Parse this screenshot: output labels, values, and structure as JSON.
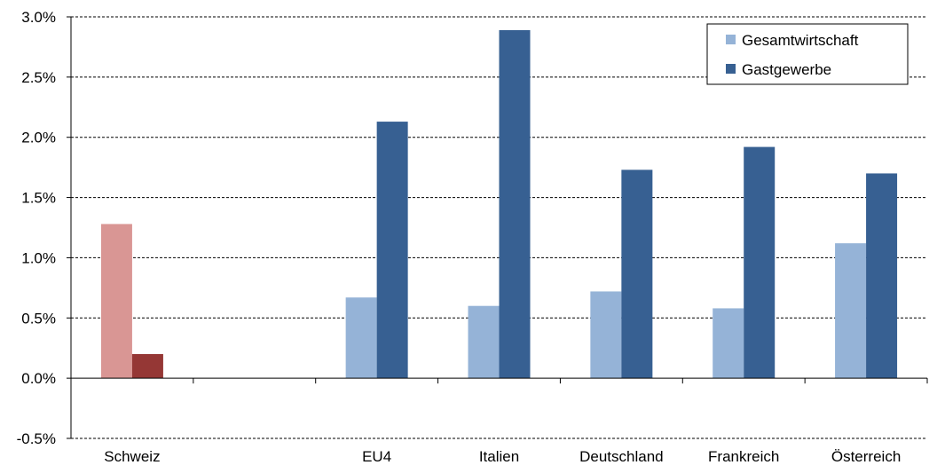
{
  "chart_data": {
    "type": "bar",
    "categories": [
      "Schweiz",
      "",
      "EU4",
      "Italien",
      "Deutschland",
      "Frankreich",
      "Österreich"
    ],
    "series": [
      {
        "name": "Gesamtwirtschaft",
        "values": [
          1.28,
          null,
          0.67,
          0.6,
          0.72,
          0.58,
          1.12
        ],
        "color": "#95b3d7",
        "highlight_color": "#d99694"
      },
      {
        "name": "Gastgewerbe",
        "values": [
          0.2,
          null,
          2.13,
          2.89,
          1.73,
          1.92,
          1.7
        ],
        "color": "#376092",
        "highlight_color": "#953735"
      }
    ],
    "highlight_category": "Schweiz",
    "ylim": [
      -0.5,
      3.0
    ],
    "yticks": [
      -0.5,
      0.0,
      0.5,
      1.0,
      1.5,
      2.0,
      2.5,
      3.0
    ],
    "ytick_labels": [
      "-0.5%",
      "0.0%",
      "0.5%",
      "1.0%",
      "1.5%",
      "2.0%",
      "2.5%",
      "3.0%"
    ],
    "grid": true,
    "grid_style": "dashed",
    "legend_position": "top-right",
    "title": "",
    "xlabel": "",
    "ylabel": ""
  }
}
